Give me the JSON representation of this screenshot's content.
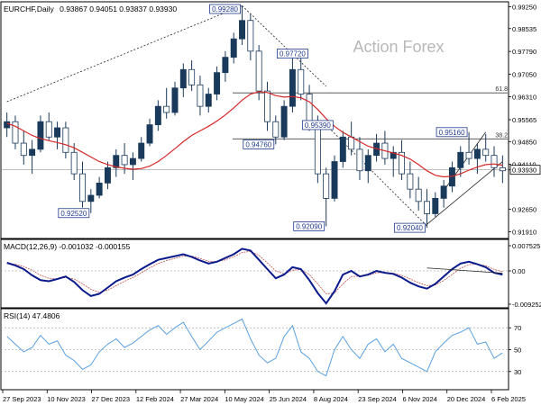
{
  "chart_data": {
    "type": "line",
    "header": {
      "symbol_tf": "EURCHF,Daily",
      "ohlc": "0.93867 0.94051 0.93837 0.93930"
    },
    "watermark": "Action Forex",
    "colors": {
      "background": "#ffffff",
      "frame": "#000000",
      "candle": "#1a3a5c",
      "ma": "#d62728",
      "trend": "#222222",
      "macd_main": "#0a1a8c",
      "macd_signal": "#c05050",
      "rsi": "#5aa0e0",
      "label_border": "#1f3b8c",
      "label_text": "#1f3b8c",
      "watermark": "#b8b8b8"
    },
    "x_ticks": [
      "27 Sep 2023",
      "10 Nov 2023",
      "27 Dec 2023",
      "12 Feb 2024",
      "27 Mar 2024",
      "10 May 2024",
      "25 Jun 2024",
      "8 Aug 2024",
      "23 Sep 2024",
      "6 Nov 2024",
      "20 Dec 2024",
      "6 Feb 2025"
    ],
    "price": {
      "ylim": [
        0.9175,
        0.9935
      ],
      "y_ticks": [
        "0.99250",
        "0.98535",
        "0.97790",
        "0.97050",
        "0.96310",
        "0.95565",
        "0.94850",
        "0.94110",
        "0.93930",
        "0.92650",
        "0.91910"
      ],
      "current": 0.9393,
      "candles": [
        [
          0.953,
          0.958,
          0.95,
          0.955
        ],
        [
          0.955,
          0.957,
          0.946,
          0.948
        ],
        [
          0.948,
          0.952,
          0.941,
          0.944
        ],
        [
          0.944,
          0.949,
          0.938,
          0.946
        ],
        [
          0.946,
          0.957,
          0.945,
          0.955
        ],
        [
          0.955,
          0.958,
          0.949,
          0.95
        ],
        [
          0.95,
          0.955,
          0.946,
          0.953
        ],
        [
          0.953,
          0.955,
          0.943,
          0.945
        ],
        [
          0.945,
          0.948,
          0.936,
          0.938
        ],
        [
          0.938,
          0.942,
          0.927,
          0.929
        ],
        [
          0.929,
          0.933,
          0.9252,
          0.931
        ],
        [
          0.931,
          0.937,
          0.93,
          0.935
        ],
        [
          0.935,
          0.942,
          0.933,
          0.94
        ],
        [
          0.94,
          0.946,
          0.937,
          0.944
        ],
        [
          0.944,
          0.948,
          0.938,
          0.941
        ],
        [
          0.941,
          0.945,
          0.936,
          0.943
        ],
        [
          0.943,
          0.95,
          0.942,
          0.948
        ],
        [
          0.948,
          0.956,
          0.947,
          0.954
        ],
        [
          0.954,
          0.962,
          0.952,
          0.96
        ],
        [
          0.96,
          0.966,
          0.956,
          0.958
        ],
        [
          0.958,
          0.968,
          0.957,
          0.966
        ],
        [
          0.966,
          0.974,
          0.963,
          0.972
        ],
        [
          0.972,
          0.975,
          0.965,
          0.967
        ],
        [
          0.967,
          0.97,
          0.957,
          0.96
        ],
        [
          0.96,
          0.966,
          0.958,
          0.964
        ],
        [
          0.964,
          0.973,
          0.962,
          0.971
        ],
        [
          0.971,
          0.978,
          0.968,
          0.976
        ],
        [
          0.976,
          0.984,
          0.974,
          0.982
        ],
        [
          0.982,
          0.9928,
          0.98,
          0.988
        ],
        [
          0.988,
          0.99,
          0.975,
          0.978
        ],
        [
          0.978,
          0.98,
          0.962,
          0.965
        ],
        [
          0.965,
          0.968,
          0.952,
          0.955
        ],
        [
          0.955,
          0.957,
          0.9476,
          0.95
        ],
        [
          0.95,
          0.962,
          0.949,
          0.96
        ],
        [
          0.96,
          0.9772,
          0.958,
          0.972
        ],
        [
          0.972,
          0.976,
          0.962,
          0.964
        ],
        [
          0.964,
          0.967,
          0.952,
          0.955
        ],
        [
          0.955,
          0.957,
          0.935,
          0.938
        ],
        [
          0.938,
          0.94,
          0.9209,
          0.93
        ],
        [
          0.93,
          0.944,
          0.929,
          0.942
        ],
        [
          0.942,
          0.952,
          0.94,
          0.95
        ],
        [
          0.95,
          0.955,
          0.944,
          0.946
        ],
        [
          0.946,
          0.95,
          0.936,
          0.939
        ],
        [
          0.939,
          0.946,
          0.935,
          0.944
        ],
        [
          0.944,
          0.951,
          0.942,
          0.948
        ],
        [
          0.948,
          0.952,
          0.941,
          0.943
        ],
        [
          0.943,
          0.947,
          0.937,
          0.945
        ],
        [
          0.945,
          0.949,
          0.936,
          0.938
        ],
        [
          0.938,
          0.942,
          0.93,
          0.933
        ],
        [
          0.933,
          0.937,
          0.926,
          0.929
        ],
        [
          0.929,
          0.933,
          0.9204,
          0.925
        ],
        [
          0.925,
          0.932,
          0.924,
          0.93
        ],
        [
          0.93,
          0.936,
          0.927,
          0.934
        ],
        [
          0.934,
          0.942,
          0.932,
          0.94
        ],
        [
          0.94,
          0.947,
          0.937,
          0.945
        ],
        [
          0.945,
          0.9516,
          0.941,
          0.943
        ],
        [
          0.943,
          0.948,
          0.938,
          0.946
        ],
        [
          0.946,
          0.951,
          0.942,
          0.944
        ],
        [
          0.944,
          0.947,
          0.937,
          0.94
        ],
        [
          0.94,
          0.944,
          0.935,
          0.939
        ]
      ],
      "ma": [
        0.9545,
        0.9535,
        0.952,
        0.9505,
        0.9495,
        0.9488,
        0.9482,
        0.9475,
        0.9465,
        0.945,
        0.9435,
        0.942,
        0.941,
        0.9403,
        0.9398,
        0.9395,
        0.9397,
        0.9405,
        0.942,
        0.944,
        0.9462,
        0.9485,
        0.9505,
        0.952,
        0.9535,
        0.9552,
        0.9572,
        0.9595,
        0.962,
        0.964,
        0.9648,
        0.9645,
        0.9635,
        0.963,
        0.9632,
        0.9628,
        0.9615,
        0.959,
        0.956,
        0.9535,
        0.9515,
        0.95,
        0.9485,
        0.947,
        0.9462,
        0.9455,
        0.9448,
        0.944,
        0.9428,
        0.941,
        0.939,
        0.9375,
        0.937,
        0.9372,
        0.938,
        0.9392,
        0.9402,
        0.941,
        0.9412,
        0.9408
      ],
      "hlines": [
        {
          "y": 0.9644,
          "label": "61.8"
        },
        {
          "y": 0.9494,
          "label": "38.2"
        }
      ],
      "lines": [
        {
          "from": [
            0,
            0.9615
          ],
          "to": [
            28,
            0.9928
          ],
          "dash": true
        },
        {
          "from": [
            28,
            0.9928
          ],
          "to": [
            38,
            0.9665
          ],
          "dash": true
        },
        {
          "from": [
            38,
            0.9539
          ],
          "to": [
            50,
            0.921
          ],
          "dash": true
        },
        {
          "from": [
            50,
            0.9215
          ],
          "to": [
            59,
            0.942
          ],
          "dash": false
        },
        {
          "from": [
            52,
            0.9325
          ],
          "to": [
            57,
            0.9516
          ],
          "dash": false
        }
      ],
      "labels": [
        {
          "text": "0.99280",
          "i": 28,
          "y": 0.9928,
          "side": "left"
        },
        {
          "text": "0.97720",
          "i": 34,
          "y": 0.9772,
          "side": "center"
        },
        {
          "text": "0.95390",
          "i": 37,
          "y": 0.9539,
          "side": "center"
        },
        {
          "text": "0.94760",
          "i": 32,
          "y": 0.9476,
          "side": "left"
        },
        {
          "text": "0.92520",
          "i": 10,
          "y": 0.9252,
          "side": "left"
        },
        {
          "text": "0.92090",
          "i": 38,
          "y": 0.9209,
          "side": "left"
        },
        {
          "text": "0.92040",
          "i": 50,
          "y": 0.9204,
          "side": "left"
        },
        {
          "text": "0.95160",
          "i": 55,
          "y": 0.9516,
          "side": "left"
        }
      ]
    },
    "macd": {
      "header": "MACD(12,26,9) -0.001032 -0.000155",
      "ylim": [
        -0.0095,
        0.0078
      ],
      "y_ticks": [
        "0.007525",
        "0.00",
        "-0.009252"
      ],
      "main": [
        0.0022,
        0.0015,
        0.0005,
        -0.0012,
        -0.0025,
        -0.0028,
        -0.0022,
        -0.0015,
        -0.003,
        -0.0052,
        -0.0068,
        -0.0062,
        -0.0045,
        -0.0028,
        -0.0018,
        -0.001,
        0.0005,
        0.0018,
        0.003,
        0.0035,
        0.004,
        0.0045,
        0.0038,
        0.0028,
        0.002,
        0.0025,
        0.0035,
        0.0045,
        0.006,
        0.0055,
        0.003,
        0.0005,
        -0.002,
        -0.001,
        0.001,
        0.0005,
        -0.0025,
        -0.006,
        -0.0088,
        -0.0055,
        -0.001,
        0.0,
        -0.0015,
        -0.001,
        0.0,
        -0.0005,
        -0.0008,
        -0.0018,
        -0.0032,
        -0.0042,
        -0.0048,
        -0.0035,
        -0.0015,
        0.0005,
        0.002,
        0.0025,
        0.0018,
        0.001,
        -0.0005,
        -0.001
      ],
      "signal": [
        0.002,
        0.0018,
        0.0012,
        0.0002,
        -0.0012,
        -0.002,
        -0.0022,
        -0.0018,
        -0.0022,
        -0.0035,
        -0.005,
        -0.0058,
        -0.0052,
        -0.004,
        -0.0028,
        -0.0018,
        -0.0005,
        0.0008,
        0.002,
        0.0028,
        0.0034,
        0.004,
        0.004,
        0.0034,
        0.0026,
        0.0025,
        0.003,
        0.0038,
        0.005,
        0.0053,
        0.0042,
        0.0022,
        0.0,
        -0.0008,
        0.0002,
        0.0004,
        -0.001,
        -0.0035,
        -0.0062,
        -0.006,
        -0.0035,
        -0.0015,
        -0.0014,
        -0.0012,
        -0.0005,
        -0.0005,
        -0.0006,
        -0.0012,
        -0.0022,
        -0.0032,
        -0.004,
        -0.0038,
        -0.0026,
        -0.001,
        0.0007,
        0.0017,
        0.0018,
        0.0014,
        0.0004,
        -0.0002
      ]
    },
    "rsi": {
      "header": "RSI(14) 47.4806",
      "ylim": [
        15,
        85
      ],
      "y_ticks": [
        "70",
        "50",
        "30"
      ],
      "levels": [
        70,
        50,
        30
      ],
      "values": [
        62,
        55,
        48,
        52,
        63,
        55,
        58,
        45,
        40,
        32,
        36,
        48,
        55,
        60,
        52,
        56,
        62,
        68,
        72,
        64,
        70,
        75,
        62,
        50,
        58,
        66,
        70,
        74,
        78,
        60,
        45,
        38,
        42,
        62,
        72,
        48,
        42,
        30,
        26,
        50,
        62,
        50,
        42,
        55,
        60,
        48,
        55,
        42,
        38,
        34,
        30,
        48,
        56,
        63,
        66,
        70,
        55,
        57,
        42,
        47
      ]
    }
  }
}
